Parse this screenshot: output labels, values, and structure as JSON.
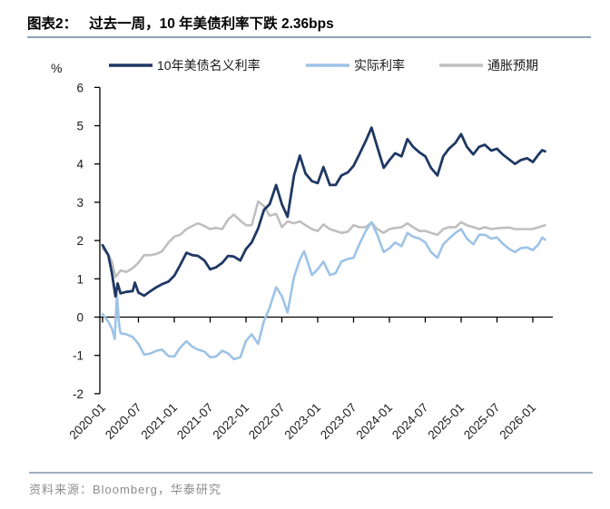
{
  "header": {
    "label": "图表2：",
    "caption": "过去一周，10 年美债利率下跌 2.36bps"
  },
  "chart_data": {
    "type": "line",
    "title": "过去一周，10 年美债利率下跌 2.36bps",
    "unit_label": "%",
    "xlabel": "",
    "ylabel": "%",
    "ylim": [
      -2,
      6
    ],
    "ytick_labels": [
      "6",
      "5",
      "4",
      "3",
      "2",
      "1",
      "0",
      "-1",
      "-2"
    ],
    "x_tick_labels": [
      "2020-01",
      "2020-07",
      "2021-01",
      "2021-07",
      "2022-01",
      "2022-07",
      "2023-01",
      "2023-07",
      "2024-01",
      "2024-07",
      "2025-01",
      "2025-07",
      "2026-01"
    ],
    "x_range_years": [
      2020.0,
      2026.28
    ],
    "grid": false,
    "legend_position": "top",
    "series": [
      {
        "id": "nominal-10y-yield",
        "name": "10年美债名义利率",
        "color": "#1F3864",
        "width": 2.8,
        "points": [
          [
            2020.0,
            1.88
          ],
          [
            2020.08,
            1.62
          ],
          [
            2020.13,
            1.15
          ],
          [
            2020.18,
            0.54
          ],
          [
            2020.21,
            0.88
          ],
          [
            2020.25,
            0.62
          ],
          [
            2020.33,
            0.66
          ],
          [
            2020.42,
            0.68
          ],
          [
            2020.45,
            0.9
          ],
          [
            2020.5,
            0.64
          ],
          [
            2020.58,
            0.56
          ],
          [
            2020.67,
            0.68
          ],
          [
            2020.75,
            0.78
          ],
          [
            2020.83,
            0.86
          ],
          [
            2020.92,
            0.93
          ],
          [
            2021.0,
            1.08
          ],
          [
            2021.08,
            1.35
          ],
          [
            2021.17,
            1.68
          ],
          [
            2021.25,
            1.62
          ],
          [
            2021.33,
            1.6
          ],
          [
            2021.42,
            1.48
          ],
          [
            2021.5,
            1.25
          ],
          [
            2021.58,
            1.3
          ],
          [
            2021.67,
            1.42
          ],
          [
            2021.75,
            1.6
          ],
          [
            2021.83,
            1.58
          ],
          [
            2021.92,
            1.48
          ],
          [
            2022.0,
            1.78
          ],
          [
            2022.08,
            1.95
          ],
          [
            2022.17,
            2.32
          ],
          [
            2022.25,
            2.8
          ],
          [
            2022.33,
            2.95
          ],
          [
            2022.42,
            3.45
          ],
          [
            2022.5,
            2.95
          ],
          [
            2022.58,
            2.62
          ],
          [
            2022.67,
            3.7
          ],
          [
            2022.75,
            4.22
          ],
          [
            2022.83,
            3.75
          ],
          [
            2022.92,
            3.55
          ],
          [
            2023.0,
            3.5
          ],
          [
            2023.08,
            3.92
          ],
          [
            2023.17,
            3.45
          ],
          [
            2023.25,
            3.45
          ],
          [
            2023.33,
            3.7
          ],
          [
            2023.42,
            3.78
          ],
          [
            2023.5,
            3.95
          ],
          [
            2023.58,
            4.25
          ],
          [
            2023.67,
            4.6
          ],
          [
            2023.75,
            4.95
          ],
          [
            2023.83,
            4.45
          ],
          [
            2023.92,
            3.9
          ],
          [
            2024.0,
            4.1
          ],
          [
            2024.08,
            4.28
          ],
          [
            2024.17,
            4.2
          ],
          [
            2024.25,
            4.65
          ],
          [
            2024.33,
            4.45
          ],
          [
            2024.42,
            4.3
          ],
          [
            2024.5,
            4.2
          ],
          [
            2024.58,
            3.9
          ],
          [
            2024.67,
            3.7
          ],
          [
            2024.75,
            4.2
          ],
          [
            2024.83,
            4.4
          ],
          [
            2024.92,
            4.55
          ],
          [
            2025.0,
            4.78
          ],
          [
            2025.08,
            4.45
          ],
          [
            2025.17,
            4.25
          ],
          [
            2025.25,
            4.45
          ],
          [
            2025.33,
            4.5
          ],
          [
            2025.42,
            4.35
          ],
          [
            2025.5,
            4.4
          ],
          [
            2025.58,
            4.25
          ],
          [
            2025.67,
            4.12
          ],
          [
            2025.75,
            4.0
          ],
          [
            2025.83,
            4.1
          ],
          [
            2025.92,
            4.15
          ],
          [
            2026.0,
            4.05
          ],
          [
            2026.08,
            4.25
          ],
          [
            2026.13,
            4.36
          ],
          [
            2026.17,
            4.33
          ]
        ]
      },
      {
        "id": "real-rate",
        "name": "实际利率",
        "color": "#9DC3E6",
        "width": 2.6,
        "points": [
          [
            2020.0,
            0.08
          ],
          [
            2020.08,
            -0.12
          ],
          [
            2020.13,
            -0.3
          ],
          [
            2020.17,
            -0.57
          ],
          [
            2020.2,
            0.6
          ],
          [
            2020.23,
            -0.2
          ],
          [
            2020.25,
            -0.42
          ],
          [
            2020.33,
            -0.45
          ],
          [
            2020.42,
            -0.52
          ],
          [
            2020.5,
            -0.7
          ],
          [
            2020.58,
            -0.98
          ],
          [
            2020.67,
            -0.95
          ],
          [
            2020.75,
            -0.88
          ],
          [
            2020.83,
            -0.85
          ],
          [
            2020.92,
            -1.02
          ],
          [
            2021.0,
            -1.03
          ],
          [
            2021.08,
            -0.8
          ],
          [
            2021.17,
            -0.63
          ],
          [
            2021.25,
            -0.77
          ],
          [
            2021.33,
            -0.85
          ],
          [
            2021.42,
            -0.9
          ],
          [
            2021.5,
            -1.05
          ],
          [
            2021.58,
            -1.03
          ],
          [
            2021.67,
            -0.88
          ],
          [
            2021.75,
            -0.95
          ],
          [
            2021.83,
            -1.1
          ],
          [
            2021.92,
            -1.05
          ],
          [
            2022.0,
            -0.62
          ],
          [
            2022.08,
            -0.45
          ],
          [
            2022.17,
            -0.7
          ],
          [
            2022.25,
            -0.1
          ],
          [
            2022.33,
            0.25
          ],
          [
            2022.42,
            0.78
          ],
          [
            2022.5,
            0.55
          ],
          [
            2022.58,
            0.12
          ],
          [
            2022.67,
            1.05
          ],
          [
            2022.75,
            1.5
          ],
          [
            2022.81,
            1.72
          ],
          [
            2022.92,
            1.1
          ],
          [
            2023.0,
            1.25
          ],
          [
            2023.08,
            1.45
          ],
          [
            2023.17,
            1.1
          ],
          [
            2023.25,
            1.15
          ],
          [
            2023.33,
            1.45
          ],
          [
            2023.42,
            1.52
          ],
          [
            2023.5,
            1.55
          ],
          [
            2023.58,
            1.9
          ],
          [
            2023.67,
            2.25
          ],
          [
            2023.75,
            2.48
          ],
          [
            2023.83,
            2.15
          ],
          [
            2023.92,
            1.7
          ],
          [
            2024.0,
            1.8
          ],
          [
            2024.08,
            1.95
          ],
          [
            2024.17,
            1.85
          ],
          [
            2024.25,
            2.2
          ],
          [
            2024.33,
            2.1
          ],
          [
            2024.42,
            2.05
          ],
          [
            2024.5,
            1.95
          ],
          [
            2024.58,
            1.7
          ],
          [
            2024.67,
            1.55
          ],
          [
            2024.75,
            1.9
          ],
          [
            2024.83,
            2.05
          ],
          [
            2024.92,
            2.2
          ],
          [
            2025.0,
            2.3
          ],
          [
            2025.08,
            2.05
          ],
          [
            2025.17,
            1.9
          ],
          [
            2025.25,
            2.15
          ],
          [
            2025.33,
            2.15
          ],
          [
            2025.42,
            2.05
          ],
          [
            2025.5,
            2.08
          ],
          [
            2025.58,
            1.92
          ],
          [
            2025.67,
            1.78
          ],
          [
            2025.75,
            1.7
          ],
          [
            2025.83,
            1.8
          ],
          [
            2025.92,
            1.82
          ],
          [
            2026.0,
            1.75
          ],
          [
            2026.08,
            1.9
          ],
          [
            2026.13,
            2.08
          ],
          [
            2026.17,
            2.02
          ]
        ]
      },
      {
        "id": "inflation-expectation",
        "name": "通胀预期",
        "color": "#BFBFBF",
        "width": 2.6,
        "points": [
          [
            2020.0,
            1.8
          ],
          [
            2020.08,
            1.62
          ],
          [
            2020.13,
            1.45
          ],
          [
            2020.18,
            1.05
          ],
          [
            2020.25,
            1.22
          ],
          [
            2020.33,
            1.18
          ],
          [
            2020.42,
            1.28
          ],
          [
            2020.5,
            1.42
          ],
          [
            2020.58,
            1.62
          ],
          [
            2020.67,
            1.62
          ],
          [
            2020.75,
            1.65
          ],
          [
            2020.83,
            1.72
          ],
          [
            2020.92,
            1.95
          ],
          [
            2021.0,
            2.1
          ],
          [
            2021.08,
            2.15
          ],
          [
            2021.17,
            2.3
          ],
          [
            2021.25,
            2.38
          ],
          [
            2021.33,
            2.45
          ],
          [
            2021.42,
            2.38
          ],
          [
            2021.5,
            2.3
          ],
          [
            2021.58,
            2.33
          ],
          [
            2021.67,
            2.3
          ],
          [
            2021.75,
            2.55
          ],
          [
            2021.83,
            2.68
          ],
          [
            2021.92,
            2.52
          ],
          [
            2022.0,
            2.4
          ],
          [
            2022.08,
            2.4
          ],
          [
            2022.17,
            3.02
          ],
          [
            2022.25,
            2.9
          ],
          [
            2022.33,
            2.65
          ],
          [
            2022.42,
            2.7
          ],
          [
            2022.5,
            2.35
          ],
          [
            2022.58,
            2.5
          ],
          [
            2022.67,
            2.45
          ],
          [
            2022.75,
            2.5
          ],
          [
            2022.83,
            2.4
          ],
          [
            2022.92,
            2.3
          ],
          [
            2023.0,
            2.25
          ],
          [
            2023.08,
            2.42
          ],
          [
            2023.17,
            2.3
          ],
          [
            2023.25,
            2.25
          ],
          [
            2023.33,
            2.2
          ],
          [
            2023.42,
            2.23
          ],
          [
            2023.5,
            2.4
          ],
          [
            2023.58,
            2.35
          ],
          [
            2023.67,
            2.35
          ],
          [
            2023.75,
            2.47
          ],
          [
            2023.83,
            2.3
          ],
          [
            2023.92,
            2.2
          ],
          [
            2024.0,
            2.3
          ],
          [
            2024.08,
            2.33
          ],
          [
            2024.17,
            2.35
          ],
          [
            2024.25,
            2.45
          ],
          [
            2024.33,
            2.35
          ],
          [
            2024.42,
            2.25
          ],
          [
            2024.5,
            2.25
          ],
          [
            2024.58,
            2.2
          ],
          [
            2024.67,
            2.15
          ],
          [
            2024.75,
            2.3
          ],
          [
            2024.83,
            2.35
          ],
          [
            2024.92,
            2.35
          ],
          [
            2025.0,
            2.48
          ],
          [
            2025.08,
            2.4
          ],
          [
            2025.17,
            2.35
          ],
          [
            2025.25,
            2.3
          ],
          [
            2025.33,
            2.35
          ],
          [
            2025.42,
            2.3
          ],
          [
            2025.5,
            2.32
          ],
          [
            2025.58,
            2.33
          ],
          [
            2025.67,
            2.34
          ],
          [
            2025.75,
            2.3
          ],
          [
            2025.83,
            2.3
          ],
          [
            2025.92,
            2.3
          ],
          [
            2026.0,
            2.3
          ],
          [
            2026.08,
            2.35
          ],
          [
            2026.17,
            2.4
          ]
        ]
      }
    ]
  },
  "footer": {
    "source": "资料来源：Bloomberg，华泰研究"
  }
}
